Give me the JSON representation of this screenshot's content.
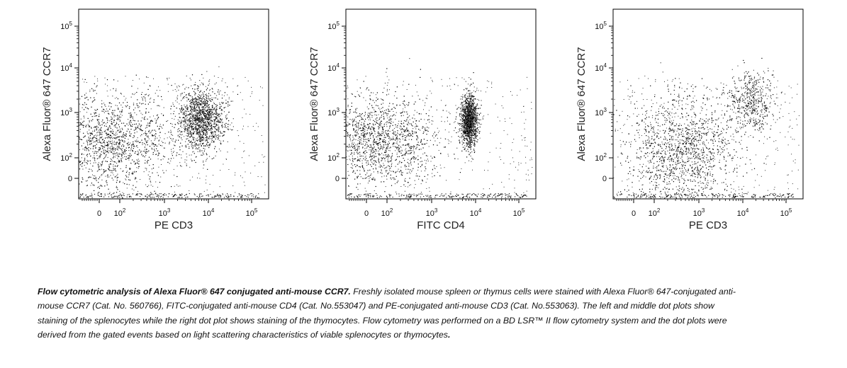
{
  "chart_data": [
    {
      "type": "scatter",
      "subtype": "flow-cytometry-dot-plot",
      "xlabel": "PE CD3",
      "ylabel": "Alexa Fluor® 647 CCR7",
      "x_scale": "biexponential",
      "y_scale": "biexponential",
      "x_ticks": [
        "0",
        "10^2",
        "10^3",
        "10^4",
        "10^5"
      ],
      "y_ticks": [
        "0",
        "10^2",
        "10^3",
        "10^4",
        "10^5"
      ],
      "xlim": [
        -200,
        200000
      ],
      "ylim": [
        -150,
        200000
      ],
      "populations": [
        {
          "x_center": 60,
          "y_center": 250,
          "density": "high"
        },
        {
          "x_center": 7000,
          "y_center": 700,
          "density": "high"
        }
      ]
    },
    {
      "type": "scatter",
      "subtype": "flow-cytometry-dot-plot",
      "xlabel": "FITC CD4",
      "ylabel": "Alexa Fluor® 647 CCR7",
      "x_scale": "biexponential",
      "y_scale": "biexponential",
      "x_ticks": [
        "0",
        "10^2",
        "10^3",
        "10^4",
        "10^5"
      ],
      "y_ticks": [
        "0",
        "10^2",
        "10^3",
        "10^4",
        "10^5"
      ],
      "xlim": [
        -200,
        200000
      ],
      "ylim": [
        -150,
        200000
      ],
      "populations": [
        {
          "x_center": 60,
          "y_center": 250,
          "density": "high"
        },
        {
          "x_center": 7000,
          "y_center": 700,
          "density": "high"
        }
      ]
    },
    {
      "type": "scatter",
      "subtype": "flow-cytometry-dot-plot",
      "xlabel": "PE CD3",
      "ylabel": "Alexa Fluor® 647 CCR7",
      "x_scale": "biexponential",
      "y_scale": "biexponential",
      "x_ticks": [
        "0",
        "10^2",
        "10^3",
        "10^4",
        "10^5"
      ],
      "y_ticks": [
        "0",
        "10^2",
        "10^3",
        "10^4",
        "10^5"
      ],
      "xlim": [
        -200,
        200000
      ],
      "ylim": [
        -150,
        200000
      ],
      "populations": [
        {
          "x_center": 400,
          "y_center": 150,
          "density": "high"
        },
        {
          "x_center": 15000,
          "y_center": 1800,
          "density": "medium"
        }
      ]
    }
  ],
  "caption": {
    "title": "Flow cytometric analysis of Alexa Fluor® 647 conjugated anti-mouse CCR7.",
    "body": " Freshly isolated mouse spleen or thymus cells were stained with Alexa Fluor® 647-conjugated anti-mouse CCR7 (Cat. No. 560766), FITC-conjugated anti-mouse CD4 (Cat. No.553047) and PE-conjugated anti-mouse CD3 (Cat. No.553063). The left and middle dot plots show staining of the splenocytes while the right dot plot shows staining of the thymocytes.  Flow cytometry was performed on a BD LSR™ II flow cytometry system and the dot plots were derived from the gated events based on light scattering characteristics of viable splenocytes or thymocytes",
    "end": "."
  }
}
